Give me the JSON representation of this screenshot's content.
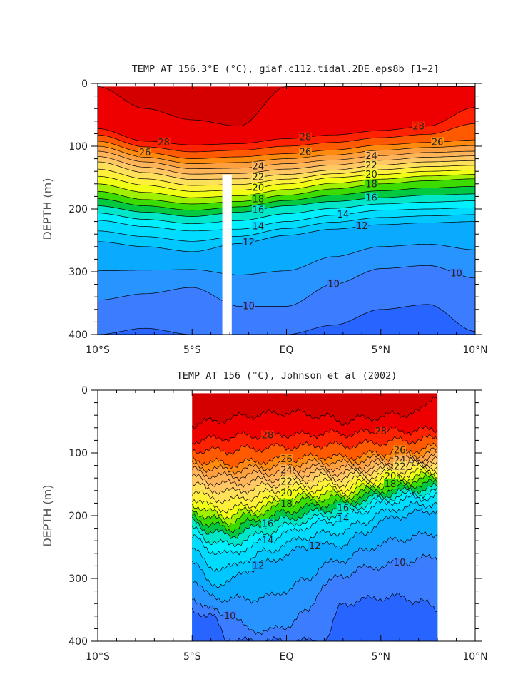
{
  "chart_data": [
    {
      "type": "heatmap",
      "subtype": "depth-latitude filled contour section",
      "title": "TEMP AT 156.3°E (°C), giaf.c112.tidal.2DE.eps8b [1−2]",
      "xlabel": "",
      "ylabel": "DEPTH (m)",
      "x_tick_labels": [
        "10°S",
        "5°S",
        "EQ",
        "5°N",
        "10°N"
      ],
      "x_ticks": [
        -10,
        -5,
        0,
        5,
        10
      ],
      "y_tick_labels": [
        "0",
        "100",
        "200",
        "300",
        "400"
      ],
      "y_ticks": [
        0,
        100,
        200,
        300,
        400
      ],
      "xlim": [
        -10,
        10
      ],
      "ylim": [
        0,
        400
      ],
      "y_inverted": true,
      "data_x_range": [
        -10,
        10
      ],
      "data_top_depth": 5,
      "contour_interval": 1,
      "labeled_contours": [
        28,
        26,
        24,
        22,
        20,
        18,
        16,
        14,
        12,
        10
      ],
      "masked_column": {
        "lat_range": [
          -3.4,
          -2.9
        ],
        "depth_range": [
          145,
          400
        ]
      },
      "isotherm_depths_m": {
        "latitudes": [
          -10,
          -7.5,
          -5,
          -2.5,
          0,
          2.5,
          5,
          7.5,
          10
        ],
        "isotherms": {
          "29": [
            5,
            40,
            58,
            68,
            5,
            5,
            5,
            5,
            5
          ],
          "28": [
            72,
            92,
            98,
            96,
            88,
            82,
            75,
            68,
            38
          ],
          "26": [
            92,
            110,
            120,
            117,
            112,
            106,
            98,
            94,
            90
          ],
          "24": [
            108,
            125,
            136,
            135,
            128,
            122,
            115,
            110,
            108
          ],
          "22": [
            125,
            142,
            153,
            152,
            145,
            138,
            130,
            125,
            123
          ],
          "20": [
            148,
            162,
            172,
            170,
            160,
            150,
            145,
            140,
            138
          ],
          "18": [
            172,
            185,
            192,
            188,
            178,
            168,
            160,
            155,
            152
          ],
          "16": [
            195,
            205,
            212,
            205,
            195,
            188,
            182,
            178,
            176
          ],
          "14": [
            218,
            228,
            235,
            232,
            220,
            210,
            202,
            200,
            198
          ],
          "12": [
            252,
            260,
            268,
            255,
            242,
            232,
            225,
            222,
            220
          ],
          "10": [
            345,
            335,
            325,
            355,
            355,
            320,
            295,
            290,
            310
          ]
        }
      },
      "deep_isotherm_9_depths_m": {
        "latitudes": [
          -10,
          -7.5,
          -5,
          -2.5,
          0,
          2.5,
          5,
          7.5,
          10
        ],
        "depths": [
          400,
          390,
          400,
          400,
          400,
          385,
          360,
          352,
          395
        ]
      }
    },
    {
      "type": "heatmap",
      "subtype": "depth-latitude filled contour section (observations)",
      "title": "TEMP AT 156 (°C), Johnson et al (2002)",
      "xlabel": "",
      "ylabel": "DEPTH (m)",
      "x_tick_labels": [
        "10°S",
        "5°S",
        "EQ",
        "5°N",
        "10°N"
      ],
      "x_ticks": [
        -10,
        -5,
        0,
        5,
        10
      ],
      "y_tick_labels": [
        "0",
        "100",
        "200",
        "300",
        "400"
      ],
      "y_ticks": [
        0,
        100,
        200,
        300,
        400
      ],
      "xlim": [
        -10,
        10
      ],
      "ylim": [
        0,
        400
      ],
      "y_inverted": true,
      "data_x_range": [
        -5,
        8
      ],
      "data_top_depth": 5,
      "contour_interval": 1,
      "labeled_contours": [
        28,
        26,
        24,
        22,
        20,
        18,
        16,
        14,
        12,
        10
      ],
      "isotherm_depths_m": {
        "latitudes": [
          -5,
          -4,
          -3,
          -2,
          -1,
          0,
          1,
          2,
          3,
          4,
          5,
          6,
          7,
          8
        ],
        "isotherms": {
          "29": [
            55,
            50,
            45,
            40,
            38,
            35,
            38,
            42,
            50,
            45,
            42,
            38,
            35,
            5
          ],
          "28": [
            80,
            78,
            75,
            72,
            72,
            70,
            72,
            68,
            70,
            68,
            66,
            65,
            64,
            62
          ],
          "26": [
            110,
            115,
            118,
            115,
            112,
            110,
            108,
            105,
            108,
            104,
            100,
            96,
            95,
            90
          ],
          "24": [
            128,
            135,
            138,
            135,
            132,
            128,
            125,
            122,
            125,
            120,
            115,
            112,
            110,
            105
          ],
          "22": [
            150,
            158,
            162,
            158,
            152,
            146,
            142,
            138,
            140,
            132,
            128,
            122,
            118,
            115
          ],
          "20": [
            172,
            185,
            190,
            183,
            175,
            165,
            160,
            156,
            158,
            148,
            140,
            135,
            130,
            128
          ],
          "18": [
            190,
            205,
            210,
            200,
            192,
            182,
            176,
            172,
            172,
            162,
            152,
            148,
            142,
            140
          ],
          "16": [
            210,
            225,
            232,
            222,
            213,
            205,
            198,
            190,
            188,
            176,
            168,
            162,
            158,
            155
          ],
          "14": [
            235,
            255,
            262,
            250,
            240,
            228,
            218,
            210,
            205,
            192,
            182,
            175,
            172,
            168
          ],
          "12": [
            270,
            310,
            305,
            285,
            275,
            262,
            250,
            248,
            245,
            230,
            210,
            200,
            195,
            190
          ],
          "10": [
            330,
            350,
            360,
            380,
            385,
            375,
            355,
            310,
            295,
            285,
            280,
            275,
            270,
            265
          ]
        }
      },
      "deep_isotherm_9_depths_m": {
        "latitudes": [
          -5,
          -4,
          -3,
          -2,
          -1,
          0,
          1,
          2,
          3,
          4,
          5,
          6,
          7,
          8
        ],
        "depths": [
          350,
          360,
          400,
          400,
          400,
          400,
          400,
          400,
          340,
          335,
          330,
          330,
          335,
          350
        ]
      }
    }
  ],
  "colors": {
    "t30": "#d40000",
    "t29": "#ee0000",
    "t28": "#ff2200",
    "t27": "#ff5a00",
    "t26": "#ff8a10",
    "t25": "#ffa040",
    "t24": "#ffb45a",
    "t23": "#ffc864",
    "t22": "#ffe05a",
    "t21": "#fff03c",
    "t20": "#f0ff14",
    "t19": "#a0f000",
    "t18": "#3cdc00",
    "t17": "#00c840",
    "t16": "#00e6c8",
    "t15": "#00f0ff",
    "t14": "#00dcff",
    "t13": "#00c8ff",
    "t12": "#0aaaff",
    "t11": "#2894ff",
    "t10": "#3c7cff",
    "t9": "#2864ff",
    "t8": "#1e4cf0"
  }
}
